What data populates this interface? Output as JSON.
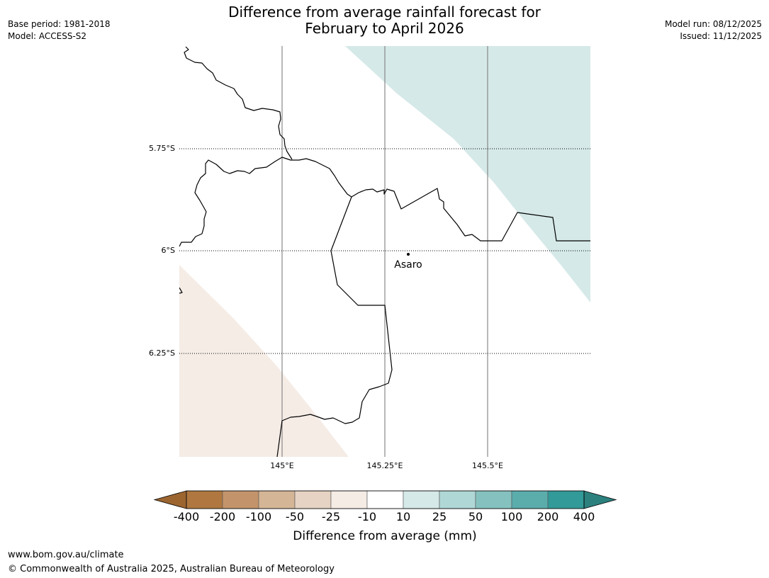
{
  "header": {
    "title_line1": "Difference from average rainfall forecast for",
    "title_line2": "February to April 2026",
    "base_period": "Base period: 1981-2018",
    "model": "Model: ACCESS-S2",
    "model_run": "Model run: 08/12/2025",
    "issued": "Issued: 11/12/2025"
  },
  "map": {
    "lat_labels": [
      "5.75°S",
      "6°S",
      "6.25°S"
    ],
    "lon_labels": [
      "145°E",
      "145.25°E",
      "145.5°E"
    ],
    "place_label": "Asaro",
    "region_colors": {
      "wetter": "#d5e9e8",
      "drier": "#f5ece6"
    },
    "region_categories": {
      "wetter": "10 to 25",
      "drier": "-25 to -10"
    }
  },
  "colorbar": {
    "tick_labels": [
      "-400",
      "-200",
      "-100",
      "-50",
      "-25",
      "-10",
      "10",
      "25",
      "50",
      "100",
      "200",
      "400"
    ],
    "colors": [
      "#9c6530",
      "#b07840",
      "#c3946b",
      "#d4b596",
      "#e6d3c3",
      "#f5ece6",
      "#ffffff",
      "#d5e9e8",
      "#afd7d6",
      "#85c2bf",
      "#5badac",
      "#329a98",
      "#2c807e"
    ],
    "title": "Difference from average (mm)"
  },
  "footer": {
    "url": "www.bom.gov.au/climate",
    "copyright": "© Commonwealth of Australia 2025, Australian Bureau of Meteorology"
  }
}
